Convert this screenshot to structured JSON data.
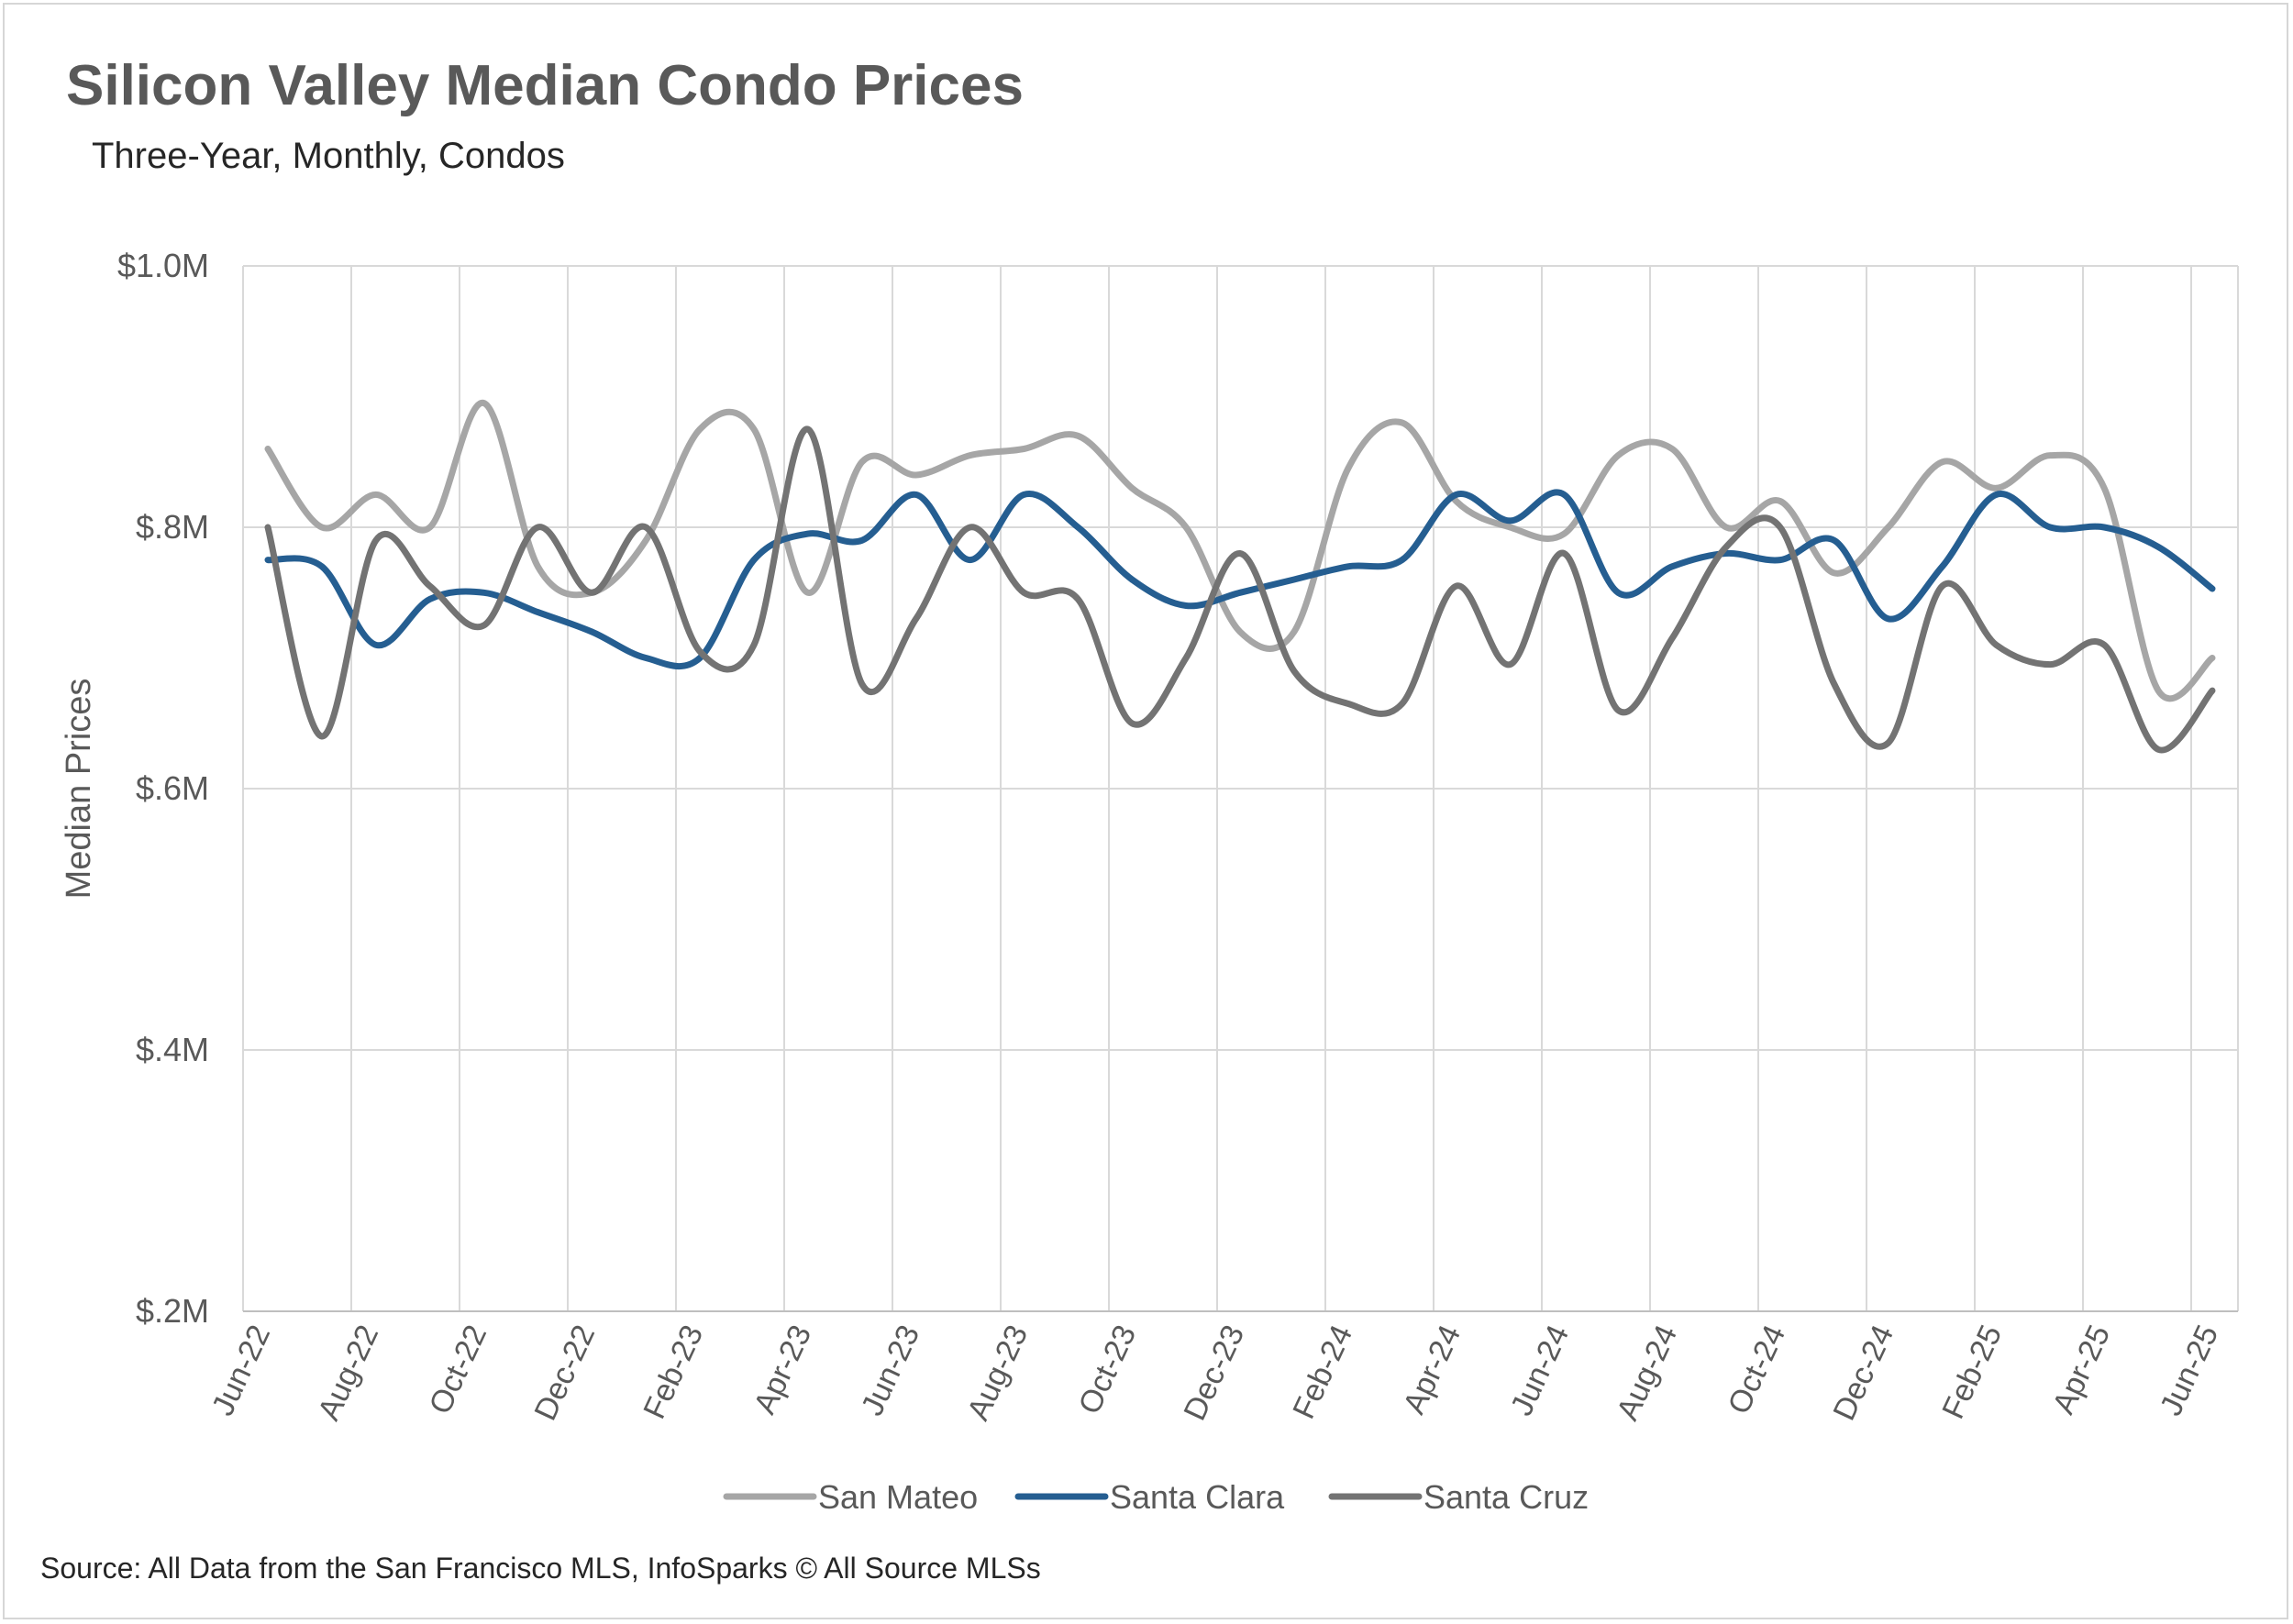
{
  "chart_data": {
    "type": "line",
    "title": "Silicon Valley Median Condo Prices",
    "subtitle": "Three-Year, Monthly, Condos",
    "ylabel": "Median Prices",
    "xlabel": "",
    "ylim": [
      0.2,
      1.0
    ],
    "y_ticks": [
      1.0,
      0.8,
      0.6,
      0.4,
      0.2
    ],
    "y_tick_labels": [
      "$1.0M",
      "$.8M",
      "$.6M",
      "$.4M",
      "$.2M"
    ],
    "x_tick_labels": [
      "Jun-22",
      "Aug-22",
      "Oct-22",
      "Dec-22",
      "Feb-23",
      "Apr-23",
      "Jun-23",
      "Aug-23",
      "Oct-23",
      "Dec-23",
      "Feb-24",
      "Apr-24",
      "Jun-24",
      "Aug-24",
      "Oct-24",
      "Dec-24",
      "Feb-25",
      "Apr-25",
      "Jun-25"
    ],
    "months": [
      "Jun-22",
      "Jul-22",
      "Aug-22",
      "Sep-22",
      "Oct-22",
      "Nov-22",
      "Dec-22",
      "Jan-23",
      "Feb-23",
      "Mar-23",
      "Apr-23",
      "May-23",
      "Jun-23",
      "Jul-23",
      "Aug-23",
      "Sep-23",
      "Oct-23",
      "Nov-23",
      "Dec-23",
      "Jan-24",
      "Feb-24",
      "Mar-24",
      "Apr-24",
      "May-24",
      "Jun-24",
      "Jul-24",
      "Aug-24",
      "Sep-24",
      "Oct-24",
      "Nov-24",
      "Dec-24",
      "Jan-25",
      "Feb-25",
      "Mar-25",
      "Apr-25",
      "May-25",
      "Jun-25"
    ],
    "grid": true,
    "legend_position": "bottom",
    "series": [
      {
        "name": "San Mateo",
        "color": "#a6a6a6",
        "values": [
          0.86,
          0.8,
          0.825,
          0.8,
          0.895,
          0.77,
          0.75,
          0.79,
          0.875,
          0.875,
          0.75,
          0.85,
          0.84,
          0.855,
          0.86,
          0.87,
          0.83,
          0.8,
          0.72,
          0.72,
          0.845,
          0.88,
          0.82,
          0.8,
          0.795,
          0.855,
          0.86,
          0.8,
          0.82,
          0.765,
          0.8,
          0.85,
          0.83,
          0.855,
          0.83,
          0.675,
          0.7
        ]
      },
      {
        "name": "Santa Clara",
        "color": "#255e91",
        "values": [
          0.775,
          0.77,
          0.71,
          0.745,
          0.75,
          0.735,
          0.72,
          0.7,
          0.7,
          0.775,
          0.795,
          0.79,
          0.825,
          0.775,
          0.825,
          0.8,
          0.76,
          0.74,
          0.75,
          0.76,
          0.77,
          0.775,
          0.825,
          0.805,
          0.825,
          0.75,
          0.77,
          0.78,
          0.775,
          0.79,
          0.73,
          0.77,
          0.825,
          0.8,
          0.8,
          0.785,
          0.753
        ]
      },
      {
        "name": "Santa Cruz",
        "color": "#737373",
        "values": [
          0.8,
          0.64,
          0.79,
          0.755,
          0.725,
          0.8,
          0.75,
          0.8,
          0.705,
          0.71,
          0.875,
          0.68,
          0.73,
          0.8,
          0.75,
          0.745,
          0.65,
          0.7,
          0.78,
          0.69,
          0.665,
          0.665,
          0.755,
          0.695,
          0.78,
          0.66,
          0.715,
          0.785,
          0.8,
          0.68,
          0.635,
          0.755,
          0.71,
          0.695,
          0.71,
          0.63,
          0.675
        ]
      }
    ]
  },
  "source": "Source: All Data from the San Francisco MLS, InfoSparks © All Source MLSs"
}
